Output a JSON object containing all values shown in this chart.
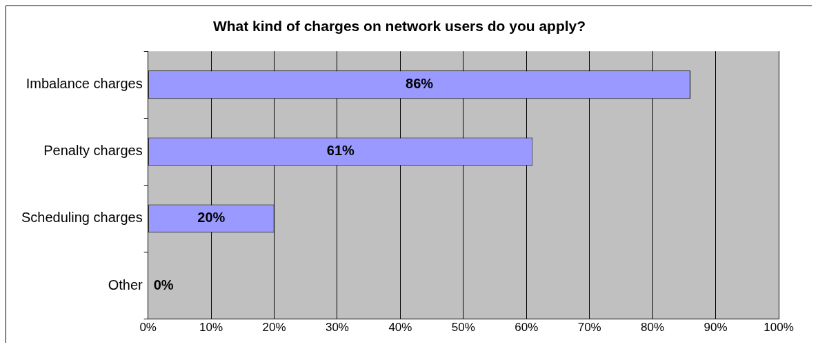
{
  "chart_data": {
    "type": "bar",
    "orientation": "horizontal",
    "title": "What kind of charges on network users do you apply?",
    "categories": [
      "Imbalance charges",
      "Penalty charges",
      "Scheduling charges",
      "Other"
    ],
    "values": [
      86,
      61,
      20,
      0
    ],
    "value_labels": [
      "86%",
      "61%",
      "20%",
      "0%"
    ],
    "color": "#9999ff",
    "xlim": [
      0,
      100
    ],
    "xticks": [
      {
        "value": 0,
        "label": "0%"
      },
      {
        "value": 10,
        "label": "10%"
      },
      {
        "value": 20,
        "label": "20%"
      },
      {
        "value": 30,
        "label": "30%"
      },
      {
        "value": 40,
        "label": "40%"
      },
      {
        "value": 50,
        "label": "50%"
      },
      {
        "value": 60,
        "label": "60%"
      },
      {
        "value": 70,
        "label": "70%"
      },
      {
        "value": 80,
        "label": "80%"
      },
      {
        "value": 90,
        "label": "90%"
      },
      {
        "value": 100,
        "label": "100%"
      }
    ],
    "grid": "x",
    "legend": false
  }
}
